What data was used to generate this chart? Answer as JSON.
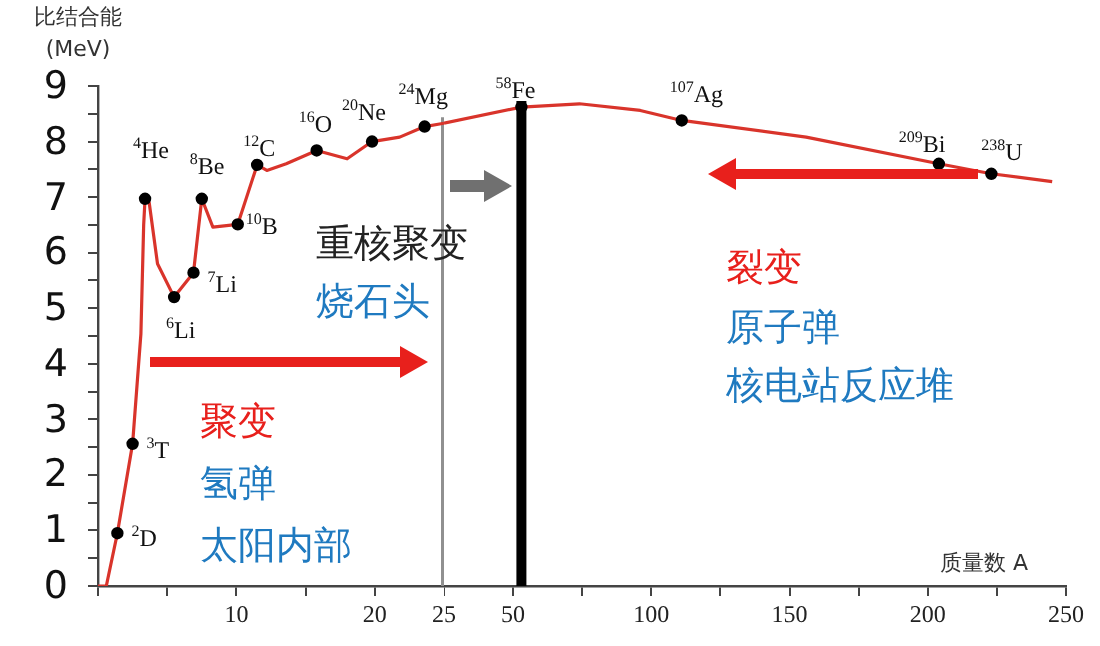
{
  "chart_data": [
    {
      "type": "line",
      "ylabel": "比结合能 (MeV)",
      "xlim": [
        0,
        25
      ],
      "xticks": [
        {
          "value": 0,
          "label": null
        },
        {
          "value": 5,
          "label": null
        },
        10,
        {
          "value": 15,
          "label": null
        },
        20
      ],
      "ylim": [
        0,
        9
      ],
      "yticks": [
        0,
        {
          "value": 0.5,
          "label": null
        },
        1,
        {
          "value": 1.5,
          "label": null
        },
        2,
        {
          "value": 2.5,
          "label": null
        },
        3,
        {
          "value": 3.5,
          "label": null
        },
        4,
        {
          "value": 4.5,
          "label": null
        },
        5,
        {
          "value": 5.5,
          "label": null
        },
        6,
        {
          "value": 6.5,
          "label": null
        },
        7,
        {
          "value": 7.5,
          "label": null
        },
        8,
        {
          "value": 8.5,
          "label": null
        },
        9
      ],
      "series": [
        {
          "type": "line",
          "color": "#d9342b",
          "marker": "none",
          "x": [
            0,
            0.6,
            1.4,
            2.5,
            3.1,
            3.3,
            3.4,
            3.7,
            4.3,
            5.5,
            6.9,
            7.5,
            8.3,
            10.1,
            11.5,
            12.2,
            13.6,
            15.8,
            18.0,
            19.8,
            21.8,
            23.6,
            25
          ],
          "values": [
            0,
            0,
            0.95,
            2.56,
            4.54,
            6.5,
            6.97,
            6.9,
            5.8,
            5.2,
            5.64,
            6.97,
            6.46,
            6.51,
            7.58,
            7.48,
            7.6,
            7.84,
            7.69,
            8.0,
            8.08,
            8.27,
            8.33
          ]
        },
        {
          "type": "scatter",
          "color": "#000000",
          "marker": "circle",
          "x": [
            1.4,
            2.5,
            3.4,
            5.5,
            6.9,
            7.5,
            10.1,
            11.5,
            15.8,
            19.8,
            23.6
          ],
          "values": [
            0.95,
            2.56,
            6.97,
            5.2,
            5.64,
            6.97,
            6.51,
            7.58,
            7.84,
            8.0,
            8.27
          ]
        }
      ],
      "ref_lines": [
        {
          "axis": "x",
          "value": 25,
          "color": "#909090"
        }
      ],
      "annotations": [
        "聚变",
        "氢弹",
        "太阳内部",
        "重核聚变",
        "烧石头",
        {
          "text": "$^{2}$D",
          "x": 1.4,
          "y": 0.95
        },
        {
          "text": "$^{3}$T",
          "x": 2.5,
          "y": 2.56
        },
        {
          "text": "$^{4}$He",
          "x": 3.4,
          "y": 6.97
        },
        {
          "text": "$^{6}$Li",
          "x": 5.5,
          "y": 5.2
        },
        {
          "text": "$^{7}$Li",
          "x": 6.9,
          "y": 5.64
        },
        {
          "text": "$^{8}$Be",
          "x": 7.5,
          "y": 6.97
        },
        {
          "text": "$^{10}$B",
          "x": 10.1,
          "y": 6.51
        },
        {
          "text": "$^{12}$C",
          "x": 11.5,
          "y": 7.58
        },
        {
          "text": "$^{16}$O",
          "x": 15.8,
          "y": 7.84
        },
        {
          "text": "$^{20}$Ne",
          "x": 19.8,
          "y": 8.0
        },
        {
          "text": "$^{24}$Mg",
          "x": 23.6,
          "y": 8.27
        }
      ]
    },
    {
      "type": "line",
      "xlabel": "质量数 A",
      "tick_labels": "x",
      "xlim": [
        25,
        250
      ],
      "xticks": [
        25,
        50,
        {
          "value": 75,
          "label": null
        },
        100,
        {
          "value": 125,
          "label": null
        },
        150,
        {
          "value": 175,
          "label": null
        },
        200,
        {
          "value": 225,
          "label": null
        },
        250
      ],
      "ylim": [
        0,
        9
      ],
      "series": [
        {
          "type": "line",
          "color": "#d9342b",
          "marker": "none",
          "x": [
            25,
            53,
            74,
            96,
            111,
            156,
            204,
            223,
            245
          ],
          "values": [
            8.33,
            8.62,
            8.68,
            8.56,
            8.38,
            8.08,
            7.6,
            7.42,
            7.28
          ]
        },
        {
          "type": "scatter",
          "color": "#000000",
          "marker": "circle",
          "x": [
            53,
            111,
            204,
            223
          ],
          "values": [
            8.62,
            8.38,
            7.6,
            7.42
          ]
        }
      ],
      "ref_lines": [
        {
          "axis": "x",
          "value": 53,
          "color": "#000000"
        }
      ],
      "annotations": [
        "裂变",
        "原子弹",
        "核电站反应堆",
        {
          "text": "$^{58}$Fe",
          "x": 53,
          "y": 8.62
        },
        {
          "text": "$^{107}$Ag",
          "x": 111,
          "y": 8.38
        },
        {
          "text": "$^{209}$Bi",
          "x": 204,
          "y": 7.6
        },
        {
          "text": "$^{238}$U",
          "x": 223,
          "y": 7.42
        }
      ]
    }
  ]
}
